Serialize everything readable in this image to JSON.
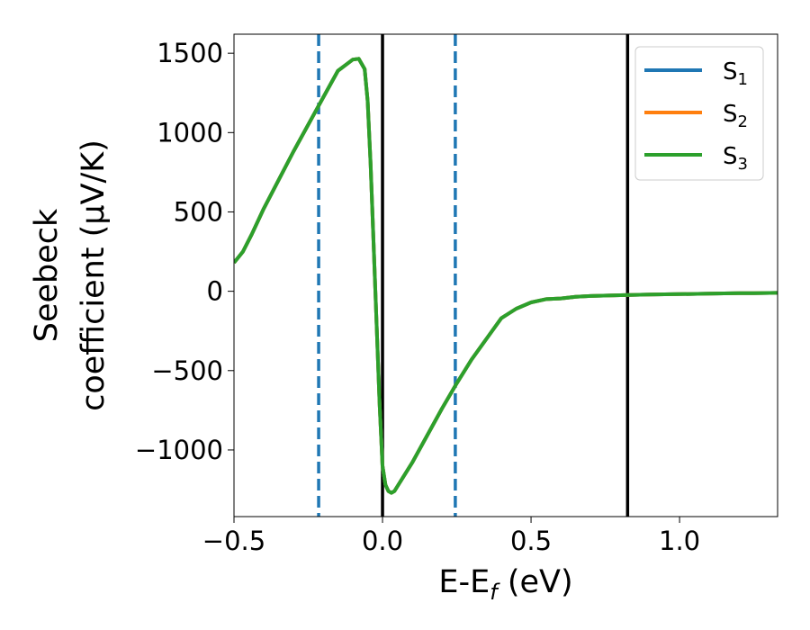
{
  "chart_data": {
    "type": "line",
    "xlabel": "E-E",
    "xlabel_sub": "f",
    "xlabel_unit": " (eV)",
    "ylabel_line1": "Seebeck",
    "ylabel_line2": "coefficient  (μV/K)",
    "xlim": [
      -0.5,
      1.33
    ],
    "ylim": [
      -1420,
      1620
    ],
    "x_ticks": [
      {
        "value": -0.5,
        "label": "−0.5"
      },
      {
        "value": 0.0,
        "label": "0.0"
      },
      {
        "value": 0.5,
        "label": "0.5"
      },
      {
        "value": 1.0,
        "label": "1.0"
      }
    ],
    "y_ticks": [
      {
        "value": -1000,
        "label": "−1000"
      },
      {
        "value": -500,
        "label": "−500"
      },
      {
        "value": 0,
        "label": "0"
      },
      {
        "value": 500,
        "label": "500"
      },
      {
        "value": 1000,
        "label": "1000"
      },
      {
        "value": 1500,
        "label": "1500"
      }
    ],
    "vlines": [
      {
        "x": -0.215,
        "style": "dashed",
        "color": "#1f77b4"
      },
      {
        "x": 0.0,
        "style": "solid",
        "color": "#000000"
      },
      {
        "x": 0.245,
        "style": "dashed",
        "color": "#1f77b4"
      },
      {
        "x": 0.825,
        "style": "solid",
        "color": "#000000"
      }
    ],
    "x": [
      -0.5,
      -0.47,
      -0.44,
      -0.4,
      -0.35,
      -0.3,
      -0.25,
      -0.2,
      -0.15,
      -0.1,
      -0.08,
      -0.06,
      -0.05,
      -0.04,
      -0.03,
      -0.02,
      -0.01,
      0.0,
      0.01,
      0.02,
      0.03,
      0.04,
      0.05,
      0.07,
      0.1,
      0.15,
      0.2,
      0.25,
      0.3,
      0.35,
      0.4,
      0.45,
      0.5,
      0.55,
      0.6,
      0.65,
      0.7,
      0.8,
      0.9,
      1.0,
      1.1,
      1.2,
      1.25,
      1.33
    ],
    "series": [
      {
        "name": "S",
        "sub": "1",
        "color": "#1f77b4",
        "values": [
          180,
          250,
          360,
          520,
          700,
          880,
          1050,
          1220,
          1390,
          1460,
          1465,
          1400,
          1200,
          800,
          300,
          -200,
          -700,
          -1100,
          -1220,
          -1260,
          -1270,
          -1260,
          -1230,
          -1170,
          -1080,
          -910,
          -740,
          -580,
          -430,
          -300,
          -170,
          -110,
          -70,
          -50,
          -45,
          -35,
          -30,
          -25,
          -20,
          -18,
          -15,
          -12,
          -12,
          -10
        ]
      },
      {
        "name": "S",
        "sub": "2",
        "color": "#ff7f0e",
        "values": [
          180,
          250,
          360,
          520,
          700,
          880,
          1050,
          1220,
          1390,
          1460,
          1465,
          1400,
          1200,
          800,
          300,
          -200,
          -700,
          -1100,
          -1220,
          -1260,
          -1270,
          -1260,
          -1230,
          -1170,
          -1080,
          -910,
          -740,
          -580,
          -430,
          -300,
          -170,
          -110,
          -70,
          -50,
          -45,
          -35,
          -30,
          -25,
          -20,
          -18,
          -15,
          -12,
          -12,
          -10
        ]
      },
      {
        "name": "S",
        "sub": "3",
        "color": "#2ca02c",
        "values": [
          180,
          250,
          360,
          520,
          700,
          880,
          1050,
          1220,
          1390,
          1460,
          1465,
          1400,
          1200,
          800,
          300,
          -200,
          -700,
          -1100,
          -1220,
          -1260,
          -1270,
          -1260,
          -1230,
          -1170,
          -1080,
          -910,
          -740,
          -580,
          -430,
          -300,
          -170,
          -110,
          -70,
          -50,
          -45,
          -35,
          -30,
          -25,
          -20,
          -18,
          -15,
          -12,
          -12,
          -10
        ]
      }
    ],
    "legend": "top-right",
    "grid": false
  }
}
